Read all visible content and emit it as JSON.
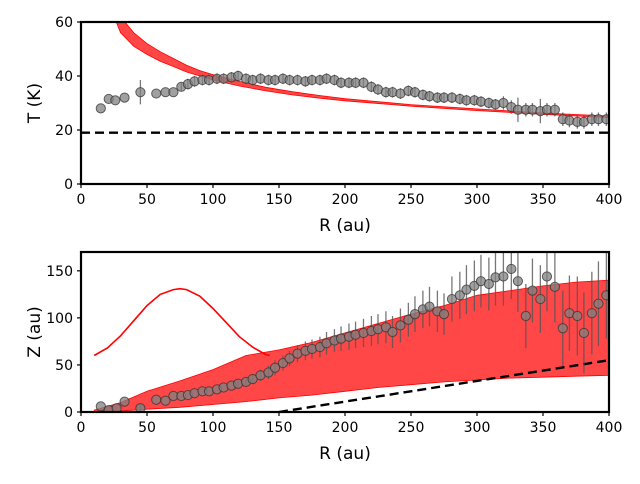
{
  "chart_data": [
    {
      "type": "scatter",
      "xlabel": "R (au)",
      "ylabel": "T (K)",
      "xlim": [
        0,
        400
      ],
      "ylim": [
        0,
        60
      ],
      "xticks": [
        "0",
        "50",
        "100",
        "150",
        "200",
        "250",
        "300",
        "350",
        "400"
      ],
      "yticks": [
        "0",
        "20",
        "40",
        "60"
      ],
      "grid": false,
      "reference_line": {
        "y": 19,
        "style": "dashed",
        "color": "#000000"
      },
      "model_band": {
        "color": "#ff0000",
        "x": [
          25,
          30,
          40,
          50,
          60,
          70,
          80,
          90,
          100,
          120,
          140,
          160,
          180,
          200,
          250,
          300,
          350,
          400
        ],
        "lower": [
          62,
          56,
          51,
          48,
          45.5,
          43.5,
          41.5,
          40,
          38.5,
          36.3,
          34.5,
          33,
          31.8,
          30.8,
          28.8,
          27.2,
          25.8,
          24.6
        ],
        "upper": [
          62,
          62,
          56,
          52,
          49,
          46.5,
          44,
          42,
          40.5,
          38,
          35.8,
          34.2,
          32.8,
          31.6,
          29.4,
          27.8,
          26.3,
          25.2
        ]
      },
      "series": [
        {
          "color": "#808080",
          "x": [
            15,
            21,
            26,
            33,
            45,
            57,
            64,
            70,
            76,
            81,
            86,
            92,
            97,
            103,
            108,
            114,
            119,
            125,
            130,
            136,
            142,
            147,
            153,
            158,
            164,
            170,
            175,
            181,
            186,
            192,
            197,
            203,
            208,
            214,
            220,
            225,
            231,
            236,
            242,
            248,
            253,
            259,
            264,
            270,
            275,
            281,
            287,
            292,
            298,
            303,
            309,
            314,
            320,
            326,
            331,
            337,
            342,
            348,
            353,
            359,
            365,
            370,
            376,
            381,
            387,
            392,
            398
          ],
          "y": [
            28,
            31.5,
            31,
            32,
            34,
            33.5,
            34,
            34,
            36,
            37,
            38,
            38.5,
            38.5,
            39,
            39,
            39.5,
            40,
            39,
            38.5,
            39,
            38.5,
            38.5,
            39,
            38.5,
            38.5,
            38,
            38.5,
            38.5,
            39,
            38.5,
            37.5,
            37.5,
            37.5,
            37.5,
            36,
            35,
            34,
            34,
            33.5,
            34.5,
            34,
            33,
            32.5,
            32,
            32,
            32,
            31.5,
            31,
            31,
            30.5,
            30,
            29.5,
            30,
            28.5,
            27.5,
            27.5,
            27.5,
            27,
            27.5,
            27.5,
            24,
            23.5,
            23,
            23,
            24,
            24,
            24
          ],
          "err": [
            0,
            0,
            0,
            0,
            4.5,
            0,
            0,
            0,
            1.5,
            2,
            2,
            2,
            2,
            2,
            2,
            2,
            2,
            2,
            2,
            2,
            2,
            2,
            2,
            2,
            2,
            2,
            2,
            2,
            2,
            2,
            2,
            2,
            2,
            2,
            2,
            2,
            2,
            2,
            2,
            2,
            2,
            2,
            2,
            2,
            2,
            2,
            2,
            2,
            2,
            2,
            2,
            2,
            2.5,
            2.5,
            4.5,
            2.5,
            2.5,
            4.5,
            2.5,
            2.5,
            2.5,
            2.5,
            2.5,
            2.5,
            2.5,
            2.5,
            2.5
          ]
        }
      ]
    },
    {
      "type": "scatter",
      "xlabel": "R (au)",
      "ylabel": "Z (au)",
      "xlim": [
        0,
        400
      ],
      "ylim": [
        0,
        170
      ],
      "xticks": [
        "0",
        "50",
        "100",
        "150",
        "200",
        "250",
        "300",
        "350",
        "400"
      ],
      "yticks": [
        "0",
        "50",
        "100",
        "150"
      ],
      "grid": false,
      "reference_line": {
        "style": "dashed",
        "color": "#000000",
        "x": [
          150,
          200,
          250,
          300,
          350,
          400
        ],
        "y": [
          0,
          11,
          22,
          33,
          44,
          55
        ]
      },
      "curve": {
        "color": "#ff0000",
        "x": [
          10,
          20,
          30,
          40,
          50,
          60,
          70,
          75,
          80,
          90,
          100,
          110,
          120,
          130,
          140,
          143
        ],
        "y": [
          60,
          68,
          81,
          97,
          113,
          125,
          130,
          131,
          130,
          123,
          110,
          95,
          80,
          69,
          61,
          60
        ]
      },
      "model_band": {
        "color": "#ff0000",
        "x": [
          10,
          30,
          50,
          75,
          100,
          125,
          150,
          175,
          200,
          225,
          250,
          275,
          300,
          325,
          350,
          375,
          400
        ],
        "lower": [
          0,
          1,
          3,
          5,
          8,
          11,
          15,
          18,
          22,
          26,
          29,
          32,
          34,
          36,
          37,
          38,
          39
        ],
        "upper": [
          2,
          10,
          22,
          33,
          45,
          60,
          66,
          74,
          84,
          94,
          104,
          113,
          124,
          129,
          134,
          138,
          140
        ]
      },
      "series": [
        {
          "color": "#808080",
          "x": [
            15,
            21,
            27,
            33,
            45,
            57,
            64,
            70,
            76,
            81,
            86,
            92,
            97,
            103,
            108,
            114,
            119,
            125,
            130,
            136,
            142,
            147,
            153,
            158,
            164,
            170,
            175,
            181,
            186,
            192,
            197,
            203,
            208,
            214,
            220,
            225,
            231,
            236,
            242,
            248,
            253,
            259,
            264,
            270,
            275,
            281,
            287,
            292,
            298,
            303,
            309,
            314,
            320,
            326,
            331,
            337,
            342,
            348,
            353,
            359,
            365,
            370,
            376,
            381,
            387,
            392,
            398
          ],
          "y": [
            6,
            2,
            4,
            11,
            4,
            13,
            12,
            17,
            17,
            18,
            20,
            22,
            22,
            24,
            26,
            28,
            30,
            32,
            35,
            39,
            42,
            47,
            52,
            57,
            62,
            65,
            67,
            69,
            73,
            76,
            78,
            80,
            82,
            84,
            86,
            88,
            90,
            85,
            92,
            98,
            104,
            109,
            112,
            107,
            104,
            120,
            124,
            130,
            134,
            139,
            136,
            143,
            144,
            152,
            139,
            102,
            129,
            120,
            144,
            133,
            89,
            105,
            102,
            84,
            105,
            115,
            124
          ],
          "err": [
            0,
            0,
            0,
            0,
            4,
            0,
            0,
            0,
            0,
            0,
            0,
            0,
            0,
            0,
            0,
            0,
            3,
            4,
            5,
            6,
            7,
            8,
            8,
            8,
            9,
            10,
            10,
            11,
            12,
            12,
            13,
            14,
            14,
            15,
            16,
            16,
            17,
            17,
            18,
            18,
            19,
            20,
            21,
            22,
            22,
            24,
            25,
            26,
            27,
            28,
            28,
            30,
            31,
            32,
            33,
            34,
            34,
            36,
            37,
            38,
            40,
            40,
            42,
            43,
            44,
            45,
            46
          ]
        }
      ]
    }
  ]
}
